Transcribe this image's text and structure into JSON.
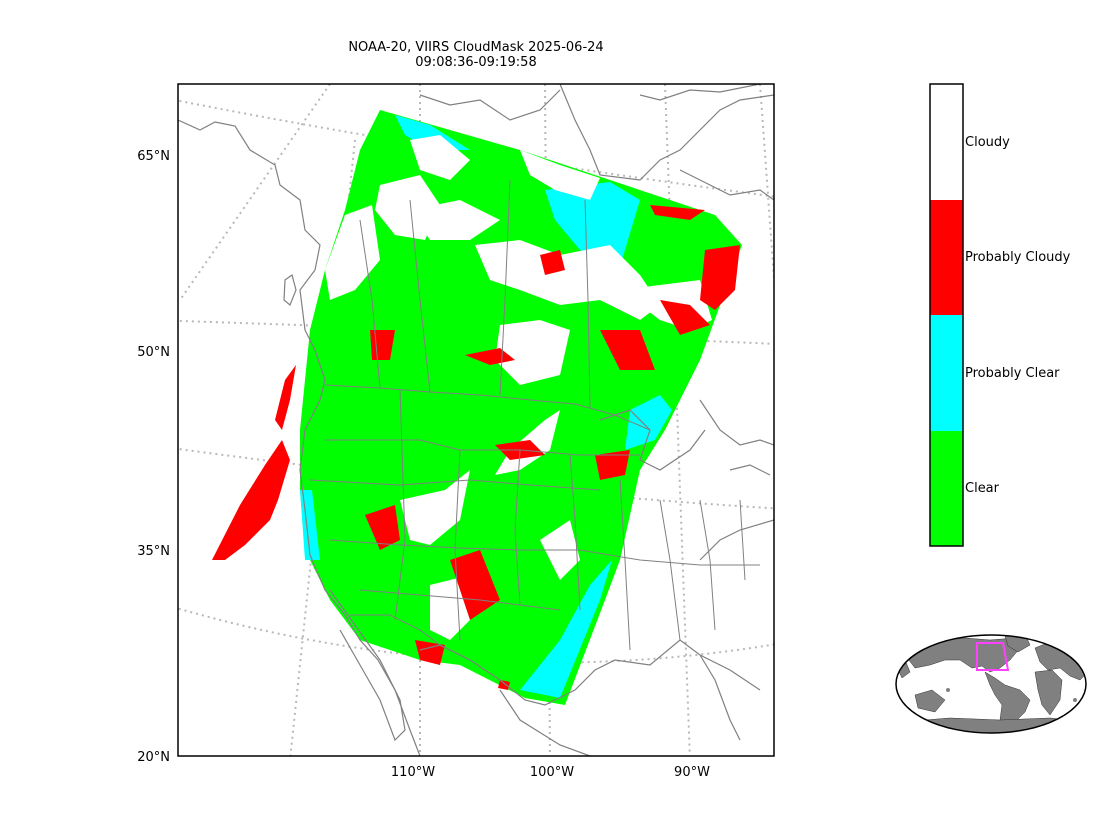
{
  "title": {
    "line1": "NOAA-20, VIIRS CloudMask 2025-06-24",
    "line2": "09:08:36-09:19:58"
  },
  "axes": {
    "lat_ticks": [
      "65°N",
      "50°N",
      "35°N",
      "20°N"
    ],
    "lon_ticks": [
      "110°W",
      "100°W",
      "90°W"
    ]
  },
  "colorbar": {
    "categories": [
      {
        "label": "Cloudy",
        "color": "#ffffff"
      },
      {
        "label": "Probably Cloudy",
        "color": "#ff0000"
      },
      {
        "label": "Probably Clear",
        "color": "#00ffff"
      },
      {
        "label": "Clear",
        "color": "#00ff00"
      }
    ]
  },
  "colors": {
    "clear": "#00ff00",
    "probably_clear": "#00ffff",
    "probably_cloudy": "#ff0000",
    "cloudy": "#ffffff",
    "coastline": "#808080",
    "gridline": "#b0b0b0",
    "inset_land": "#808080",
    "inset_extent": "#ff40ff"
  }
}
